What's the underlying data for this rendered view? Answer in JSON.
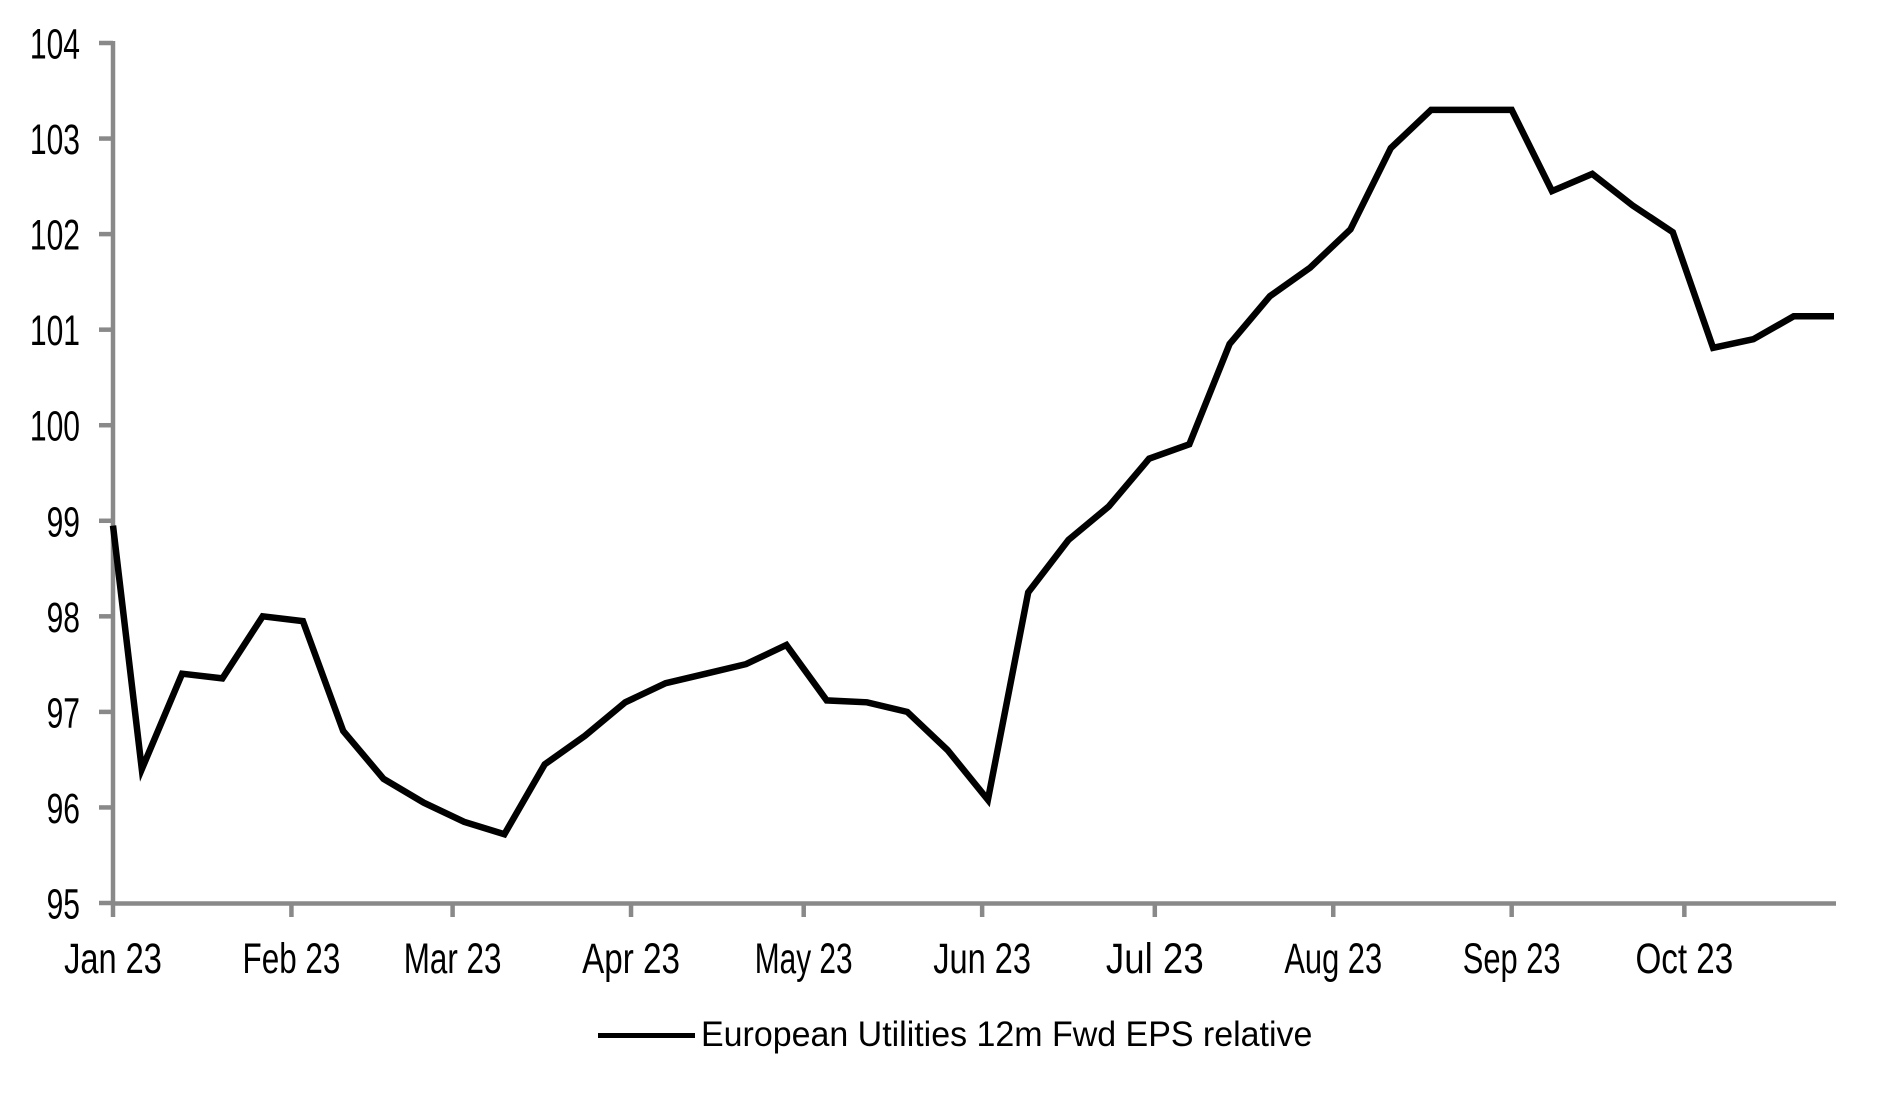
{
  "chart_data": {
    "type": "line",
    "title": "",
    "grid": "off",
    "legend": {
      "label": "European Utilities 12m Fwd EPS relative",
      "position": "bottom-center",
      "swatch_color": "#000000"
    },
    "colors": {
      "axis": "#898989",
      "text": "#000000",
      "line": "#000000",
      "background": "#ffffff"
    },
    "x_axis": {
      "start_date": "2023-01-01",
      "end_date": "2023-10-27",
      "ticks": [
        {
          "label": "Jan 23",
          "date": "2023-01-01"
        },
        {
          "label": "Feb 23",
          "date": "2023-02-01"
        },
        {
          "label": "Mar 23",
          "date": "2023-03-01"
        },
        {
          "label": "Apr 23",
          "date": "2023-04-01"
        },
        {
          "label": "May 23",
          "date": "2023-05-01"
        },
        {
          "label": "Jun 23",
          "date": "2023-06-01"
        },
        {
          "label": "Jul 23",
          "date": "2023-07-01"
        },
        {
          "label": "Aug 23",
          "date": "2023-08-01"
        },
        {
          "label": "Sep 23",
          "date": "2023-09-01"
        },
        {
          "label": "Oct 23",
          "date": "2023-10-01"
        }
      ]
    },
    "y_axis": {
      "ylim": [
        95,
        104
      ],
      "ticks": [
        95,
        96,
        97,
        98,
        99,
        100,
        101,
        102,
        103,
        104
      ]
    },
    "series": [
      {
        "name": "European Utilities 12m Fwd EPS relative",
        "color": "#000000",
        "points": [
          {
            "date": "2023-01-01",
            "value": 98.95
          },
          {
            "date": "2023-01-06",
            "value": 96.4
          },
          {
            "date": "2023-01-13",
            "value": 97.4
          },
          {
            "date": "2023-01-20",
            "value": 97.35
          },
          {
            "date": "2023-01-27",
            "value": 98.0
          },
          {
            "date": "2023-02-03",
            "value": 97.95
          },
          {
            "date": "2023-02-10",
            "value": 96.8
          },
          {
            "date": "2023-02-17",
            "value": 96.3
          },
          {
            "date": "2023-02-24",
            "value": 96.05
          },
          {
            "date": "2023-03-03",
            "value": 95.85
          },
          {
            "date": "2023-03-10",
            "value": 95.72
          },
          {
            "date": "2023-03-17",
            "value": 96.45
          },
          {
            "date": "2023-03-24",
            "value": 96.75
          },
          {
            "date": "2023-03-31",
            "value": 97.1
          },
          {
            "date": "2023-04-07",
            "value": 97.3
          },
          {
            "date": "2023-04-14",
            "value": 97.4
          },
          {
            "date": "2023-04-21",
            "value": 97.5
          },
          {
            "date": "2023-04-28",
            "value": 97.7
          },
          {
            "date": "2023-05-05",
            "value": 97.12
          },
          {
            "date": "2023-05-12",
            "value": 97.1
          },
          {
            "date": "2023-05-19",
            "value": 97.0
          },
          {
            "date": "2023-05-26",
            "value": 96.6
          },
          {
            "date": "2023-06-02",
            "value": 96.08
          },
          {
            "date": "2023-06-09",
            "value": 98.25
          },
          {
            "date": "2023-06-16",
            "value": 98.8
          },
          {
            "date": "2023-06-23",
            "value": 99.15
          },
          {
            "date": "2023-06-30",
            "value": 99.65
          },
          {
            "date": "2023-07-07",
            "value": 99.8
          },
          {
            "date": "2023-07-14",
            "value": 100.85
          },
          {
            "date": "2023-07-21",
            "value": 101.35
          },
          {
            "date": "2023-07-28",
            "value": 101.65
          },
          {
            "date": "2023-08-04",
            "value": 102.05
          },
          {
            "date": "2023-08-11",
            "value": 102.9
          },
          {
            "date": "2023-08-18",
            "value": 103.3
          },
          {
            "date": "2023-08-25",
            "value": 103.3
          },
          {
            "date": "2023-09-01",
            "value": 103.3
          },
          {
            "date": "2023-09-08",
            "value": 102.45
          },
          {
            "date": "2023-09-15",
            "value": 102.63
          },
          {
            "date": "2023-09-22",
            "value": 102.3
          },
          {
            "date": "2023-09-29",
            "value": 102.02
          },
          {
            "date": "2023-10-06",
            "value": 100.81
          },
          {
            "date": "2023-10-13",
            "value": 100.9
          },
          {
            "date": "2023-10-20",
            "value": 101.14
          },
          {
            "date": "2023-10-27",
            "value": 101.14
          }
        ]
      }
    ]
  }
}
